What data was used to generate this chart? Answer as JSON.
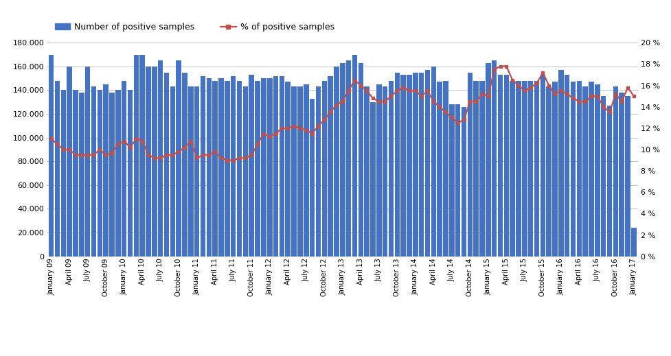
{
  "bar_vals": [
    170000,
    148000,
    140000,
    160000,
    140000,
    138000,
    160000,
    143000,
    140000,
    145000,
    138000,
    140000,
    148000,
    140000,
    170000,
    170000,
    160000,
    160000,
    165000,
    155000,
    143000,
    165000,
    155000,
    143000,
    143000,
    152000,
    150000,
    148000,
    150000,
    148000,
    152000,
    148000,
    143000,
    153000,
    148000,
    150000,
    150000,
    152000,
    152000,
    147000,
    143000,
    143000,
    145000,
    133000,
    143000,
    148000,
    152000,
    160000,
    163000,
    165000,
    170000,
    163000,
    143000,
    130000,
    145000,
    143000,
    148000,
    155000,
    153000,
    153000,
    155000,
    155000,
    157000,
    160000,
    147000,
    148000,
    128000,
    128000,
    126000,
    155000,
    148000,
    148000,
    163000,
    165000,
    153000,
    153000,
    148000,
    148000,
    148000,
    148000,
    148000,
    153000,
    143000,
    147000,
    157000,
    153000,
    147000,
    148000,
    143000,
    147000,
    145000,
    135000,
    127000,
    143000,
    138000,
    135000,
    24000
  ],
  "pct_vals": [
    11.0,
    10.5,
    10.0,
    10.0,
    9.5,
    9.5,
    9.5,
    9.5,
    10.0,
    9.5,
    9.7,
    10.5,
    10.8,
    10.2,
    11.0,
    10.8,
    9.5,
    9.2,
    9.2,
    9.5,
    9.5,
    9.8,
    10.2,
    10.8,
    9.2,
    9.5,
    9.5,
    9.8,
    9.2,
    9.0,
    9.0,
    9.2,
    9.2,
    9.5,
    10.5,
    11.5,
    11.2,
    11.5,
    12.0,
    12.0,
    12.2,
    12.0,
    11.8,
    11.5,
    12.2,
    12.8,
    13.5,
    14.2,
    14.5,
    15.5,
    16.5,
    16.0,
    15.5,
    14.8,
    14.5,
    14.5,
    15.0,
    15.5,
    15.8,
    15.5,
    15.5,
    15.0,
    15.5,
    14.5,
    14.0,
    13.5,
    13.0,
    12.5,
    12.8,
    14.5,
    14.5,
    15.2,
    15.0,
    17.5,
    17.8,
    17.8,
    16.5,
    16.0,
    15.5,
    15.8,
    16.2,
    17.2,
    16.0,
    15.2,
    15.5,
    15.2,
    14.8,
    14.5,
    14.5,
    15.0,
    15.0,
    14.0,
    13.5,
    15.2,
    14.5,
    15.8,
    15.0
  ],
  "tick_labels": [
    "January 09",
    "April 09",
    "July 09",
    "October 09",
    "January 10",
    "April 10",
    "July 10",
    "October 10",
    "January 11",
    "April 11",
    "July 11",
    "October 11",
    "January 12",
    "April 12",
    "July 12",
    "October 12",
    "January 13",
    "April 13",
    "July 13",
    "October 13",
    "January 14",
    "April 14",
    "July 14",
    "October 14",
    "January 15",
    "April 15",
    "July 15",
    "October 15",
    "January 16",
    "April 16",
    "July 16",
    "October 16",
    "January 17"
  ],
  "bar_color": "#4472C4",
  "line_color": "#C0504D",
  "legend1": "Number of positive samples",
  "legend2": "% of positive samples",
  "background_color": "#ffffff",
  "grid_color": "#C0C0C0"
}
